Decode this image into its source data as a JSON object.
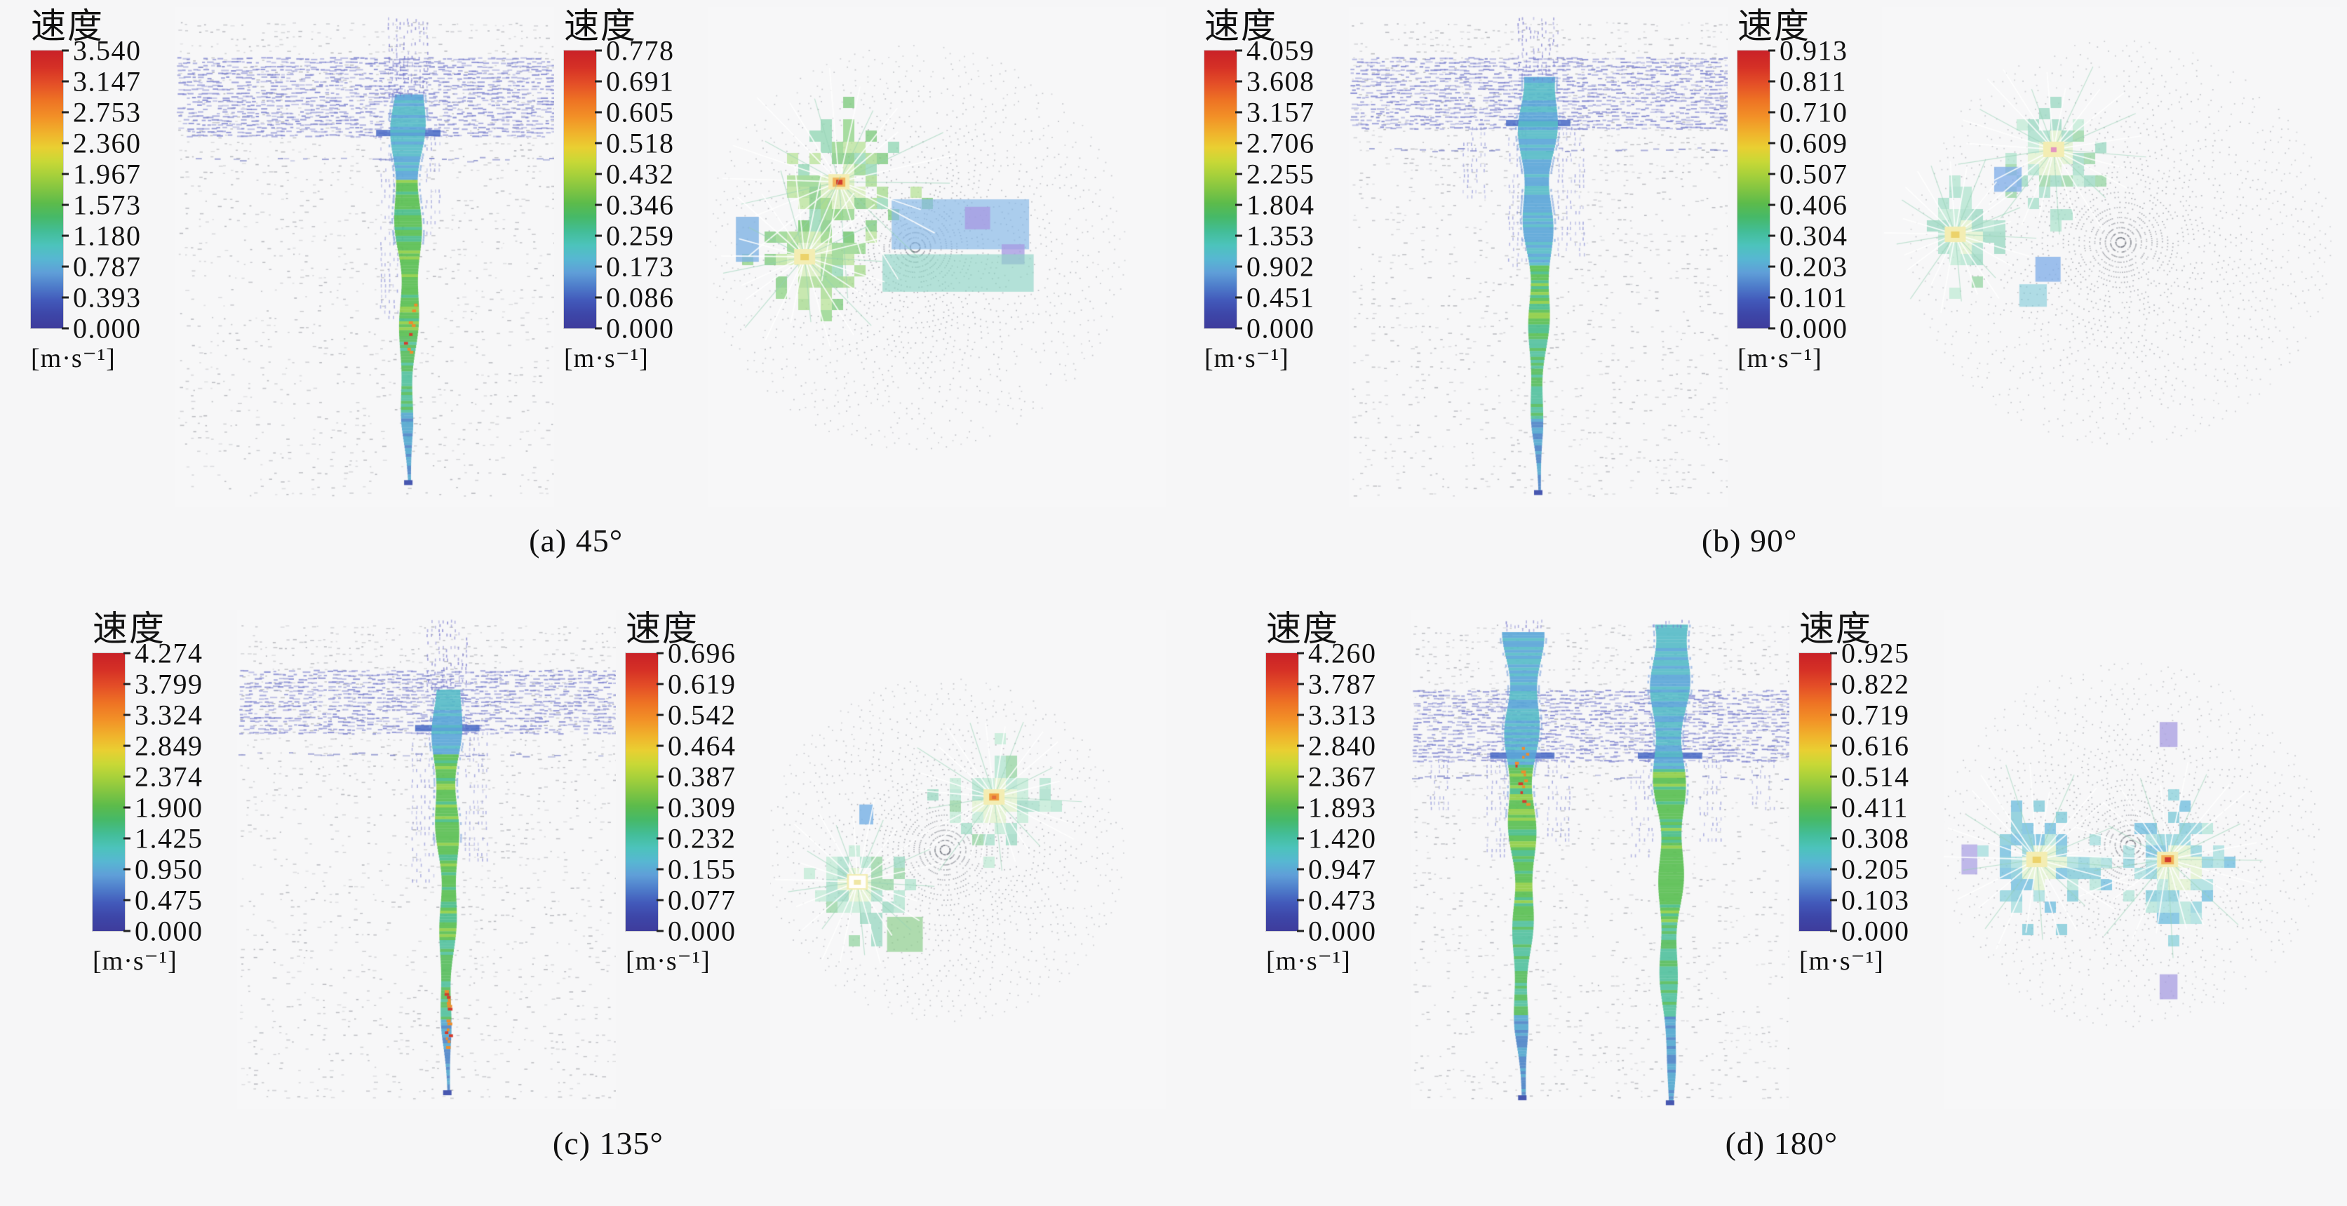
{
  "figure": {
    "legend_title": "速度",
    "unit_label": "[m·s⁻¹]"
  },
  "chart_data": {
    "type": "heatmap",
    "subtype": "cfd-velocity-vector-field",
    "title": "",
    "layout": "2x2 panels; each panel shows a side-view jet vector plot and a top-view radial vector plot, each with its own velocity colorbar legend",
    "legend_position": "left of each plot",
    "grid": false,
    "colormap_top_to_bottom": [
      "#c92127",
      "#e44f27",
      "#f29127",
      "#e9cf32",
      "#a5d03b",
      "#5cbb4b",
      "#43bd96",
      "#4cc3bb",
      "#5f9ed8",
      "#4e7cca",
      "#3e3c9c"
    ],
    "panels": [
      {
        "id": "a",
        "caption": "(a) 45°",
        "angle_deg": 45,
        "side_view_colorbar": {
          "title": "速度",
          "unit": "[m·s⁻¹]",
          "min": 0.0,
          "max": 3.54,
          "ticks": [
            "3.540",
            "3.147",
            "2.753",
            "2.360",
            "1.967",
            "1.573",
            "1.180",
            "0.787",
            "0.393",
            "0.000"
          ]
        },
        "top_view_colorbar": {
          "title": "速度",
          "unit": "[m·s⁻¹]",
          "min": 0.0,
          "max": 0.778,
          "ticks": [
            "0.778",
            "0.691",
            "0.605",
            "0.518",
            "0.432",
            "0.346",
            "0.259",
            "0.173",
            "0.086",
            "0.000"
          ]
        }
      },
      {
        "id": "b",
        "caption": "(b) 90°",
        "angle_deg": 90,
        "side_view_colorbar": {
          "title": "速度",
          "unit": "[m·s⁻¹]",
          "min": 0.0,
          "max": 4.059,
          "ticks": [
            "4.059",
            "3.608",
            "3.157",
            "2.706",
            "2.255",
            "1.804",
            "1.353",
            "0.902",
            "0.451",
            "0.000"
          ]
        },
        "top_view_colorbar": {
          "title": "速度",
          "unit": "[m·s⁻¹]",
          "min": 0.0,
          "max": 0.913,
          "ticks": [
            "0.913",
            "0.811",
            "0.710",
            "0.609",
            "0.507",
            "0.406",
            "0.304",
            "0.203",
            "0.101",
            "0.000"
          ]
        }
      },
      {
        "id": "c",
        "caption": "(c) 135°",
        "angle_deg": 135,
        "side_view_colorbar": {
          "title": "速度",
          "unit": "[m·s⁻¹]",
          "min": 0.0,
          "max": 4.274,
          "ticks": [
            "4.274",
            "3.799",
            "3.324",
            "2.849",
            "2.374",
            "1.900",
            "1.425",
            "0.950",
            "0.475",
            "0.000"
          ]
        },
        "top_view_colorbar": {
          "title": "速度",
          "unit": "[m·s⁻¹]",
          "min": 0.0,
          "max": 0.696,
          "ticks": [
            "0.696",
            "0.619",
            "0.542",
            "0.464",
            "0.387",
            "0.309",
            "0.232",
            "0.155",
            "0.077",
            "0.000"
          ]
        }
      },
      {
        "id": "d",
        "caption": "(d) 180°",
        "angle_deg": 180,
        "side_view_colorbar": {
          "title": "速度",
          "unit": "[m·s⁻¹]",
          "min": 0.0,
          "max": 4.26,
          "ticks": [
            "4.260",
            "3.787",
            "3.313",
            "2.840",
            "2.367",
            "1.893",
            "1.420",
            "0.947",
            "0.473",
            "0.000"
          ]
        },
        "top_view_colorbar": {
          "title": "速度",
          "unit": "[m·s⁻¹]",
          "min": 0.0,
          "max": 0.925,
          "ticks": [
            "0.925",
            "0.822",
            "0.719",
            "0.616",
            "0.514",
            "0.411",
            "0.308",
            "0.205",
            "0.103",
            "0.000"
          ]
        }
      }
    ]
  }
}
